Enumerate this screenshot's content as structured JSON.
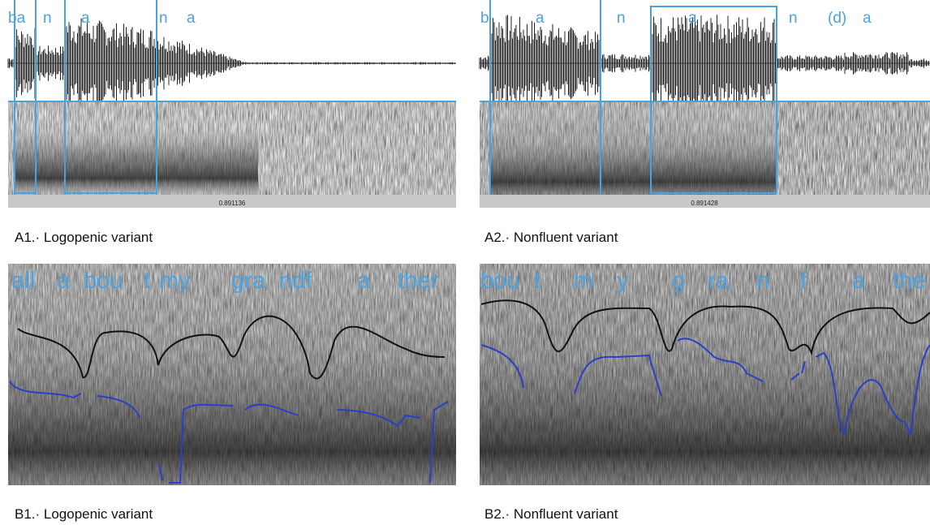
{
  "panels": [
    {
      "segments": [
        "ba",
        "n",
        "a",
        "n",
        "a"
      ],
      "time": "0.891136",
      "caption": "A1.· Logopenic variant"
    },
    {
      "segments": [
        "b",
        "a",
        "n",
        "a",
        "n",
        "(d)",
        "a"
      ],
      "time": "0.891428",
      "caption": "A2.· Nonfluent variant"
    },
    {
      "segments": [
        "all",
        "a",
        "bou",
        "t",
        "my",
        "gra",
        "ndf",
        "a",
        "ther"
      ],
      "caption": "B1.· Logopenic variant"
    },
    {
      "segments": [
        "bou",
        "t",
        "m",
        "y",
        "g",
        "ra",
        "n",
        "f",
        "a",
        "the"
      ],
      "caption": "B2.· Nonfluent variant"
    }
  ]
}
